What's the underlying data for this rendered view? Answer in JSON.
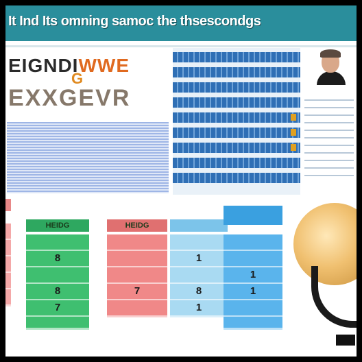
{
  "banner": {
    "title": "It Ind Its omning samoc the thsescondgs"
  },
  "headline": {
    "line1_a": "EIGNDI",
    "line1_b": "WWE",
    "line2": "G",
    "line3": "EXXGEVR"
  },
  "table": {
    "columns": [
      {
        "key": "pink",
        "header": "",
        "cells": [
          "",
          "",
          "",
          "",
          "",
          ""
        ]
      },
      {
        "key": "green",
        "header": "HEIDG",
        "cells": [
          "",
          "8",
          "",
          "8",
          "7",
          ""
        ]
      },
      {
        "key": "red",
        "header": "HEIDG",
        "cells": [
          "",
          "",
          "",
          "7",
          "",
          ""
        ]
      },
      {
        "key": "blue",
        "header": "",
        "cells": [
          "",
          "1",
          "",
          "8",
          "1",
          ""
        ]
      },
      {
        "key": "blue2",
        "header": "",
        "cells": [
          "",
          "",
          "1",
          "1",
          "",
          ""
        ]
      }
    ]
  },
  "colors": {
    "banner": "#2a8e9c",
    "green": "#3fbf70",
    "red": "#f08888",
    "blue": "#a9daf2",
    "blue_dark": "#5ab4ec",
    "accent_orange": "#e08a20"
  }
}
